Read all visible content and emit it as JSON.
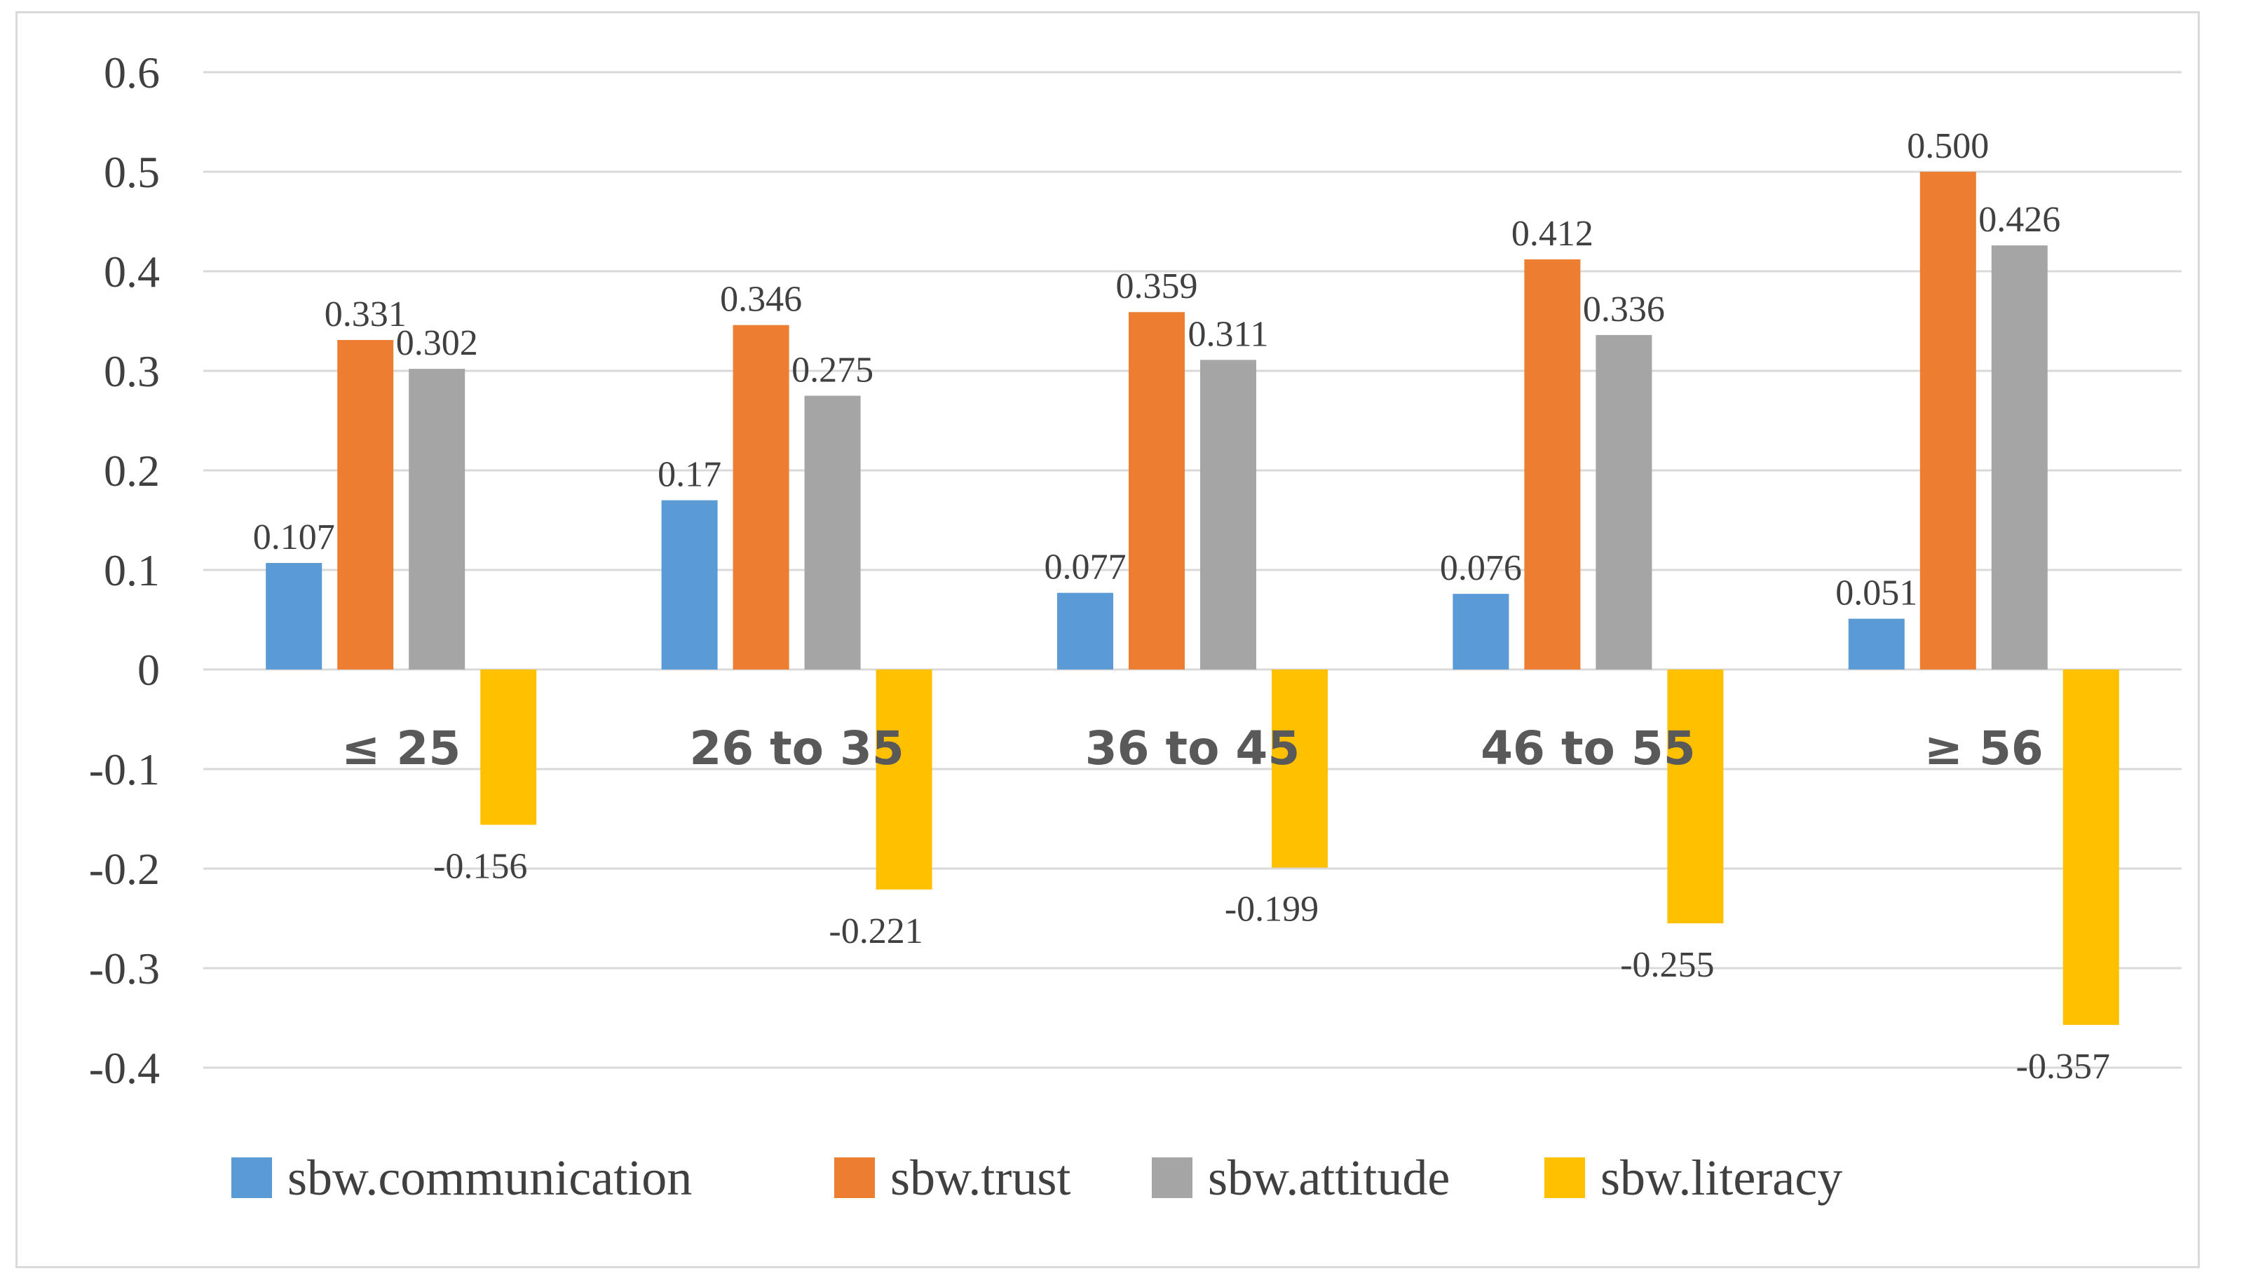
{
  "chart_data": {
    "type": "bar",
    "categories": [
      "≤ 25",
      "26 to 35",
      "36 to 45",
      "46 to 55",
      "≥ 56"
    ],
    "series": [
      {
        "name": "sbw.communication",
        "color": "#5b9bd5",
        "values": [
          0.107,
          0.17,
          0.077,
          0.076,
          0.051
        ],
        "labels": [
          "0.107",
          "0.17",
          "0.077",
          "0.076",
          "0.051"
        ]
      },
      {
        "name": "sbw.trust",
        "color": "#ed7d31",
        "values": [
          0.331,
          0.346,
          0.359,
          0.412,
          0.5
        ],
        "labels": [
          "0.331",
          "0.346",
          "0.359",
          "0.412",
          "0.500"
        ]
      },
      {
        "name": "sbw.attitude",
        "color": "#a5a5a5",
        "values": [
          0.302,
          0.275,
          0.311,
          0.336,
          0.426
        ],
        "labels": [
          "0.302",
          "0.275",
          "0.311",
          "0.336",
          "0.426"
        ]
      },
      {
        "name": "sbw.literacy",
        "color": "#ffc000",
        "values": [
          -0.156,
          -0.221,
          -0.199,
          -0.255,
          -0.357
        ],
        "labels": [
          "-0.156",
          "-0.221",
          "-0.199",
          "-0.255",
          "-0.357"
        ]
      }
    ],
    "yticks": [
      "0.6",
      "0.5",
      "0.4",
      "0.3",
      "0.2",
      "0.1",
      "0",
      "-0.1",
      "-0.2",
      "-0.3",
      "-0.4"
    ],
    "ylim": [
      -0.4,
      0.6
    ],
    "grid": true,
    "legend_position": "bottom"
  }
}
